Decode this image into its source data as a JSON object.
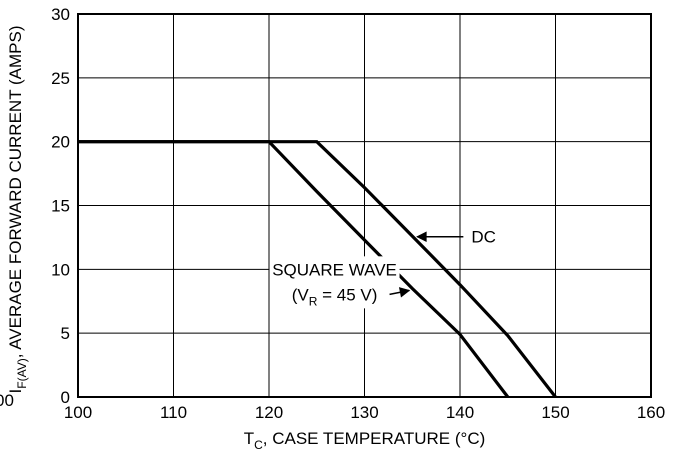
{
  "chart_data": {
    "type": "line",
    "title": "",
    "xlabel": "T",
    "xlabel_sub": "C",
    "xlabel_rest": ", CASE TEMPERATURE (°C)",
    "ylabel": "I",
    "ylabel_sub": "F(AV)",
    "ylabel_rest": ", AVERAGE FORWARD CURRENT (AMPS)",
    "xlim": [
      100,
      160
    ],
    "ylim": [
      0,
      30
    ],
    "x_ticks": [
      100,
      110,
      120,
      130,
      140,
      150,
      160
    ],
    "y_ticks": [
      0,
      5,
      10,
      15,
      20,
      25,
      30
    ],
    "grid": true,
    "series": [
      {
        "name": "DC",
        "points": [
          [
            100,
            20
          ],
          [
            125,
            20
          ],
          [
            130,
            16.4
          ],
          [
            135,
            12.6
          ],
          [
            140,
            8.8
          ],
          [
            145,
            4.8
          ],
          [
            150,
            0
          ]
        ]
      },
      {
        "name": "SQUARE WAVE",
        "points": [
          [
            100,
            20
          ],
          [
            120,
            20
          ],
          [
            125,
            16.1
          ],
          [
            130,
            12.3
          ],
          [
            135,
            8.5
          ],
          [
            140,
            4.9
          ],
          [
            145,
            0
          ]
        ]
      }
    ],
    "annotations": [
      {
        "text": "DC",
        "target_series": "DC",
        "x": 135.2,
        "y": 12.4,
        "label_x": 137.0,
        "label_y": 12.4
      },
      {
        "text": "SQUARE WAVE",
        "subtext": "(V",
        "subtext_sub": "R",
        "subtext_rest": " = 45 V)",
        "target_series": "SQUARE WAVE",
        "x": 135.0,
        "y": 8.5,
        "label_x": 121.0,
        "label_y": 10.0
      }
    ],
    "left_edge_label": "00"
  }
}
